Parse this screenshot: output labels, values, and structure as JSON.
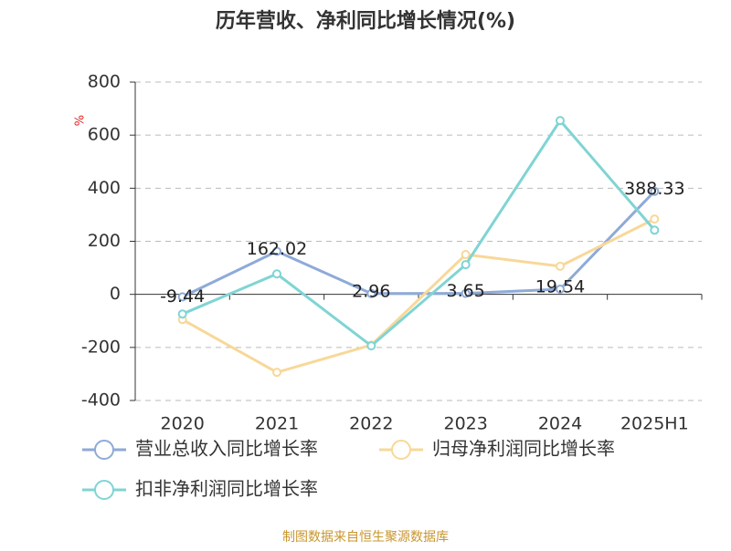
{
  "chart_data": {
    "type": "line",
    "title": "历年营收、净利同比增长情况(%)",
    "y_unit": "%",
    "categories": [
      "2020",
      "2021",
      "2022",
      "2023",
      "2024",
      "2025H1"
    ],
    "series": [
      {
        "name": "营业总收入同比增长率",
        "color": "#8eaad8",
        "values": [
          -9.44,
          162.02,
          2.96,
          3.65,
          19.54,
          388.33
        ],
        "show_labels": true
      },
      {
        "name": "归母净利润同比增长率",
        "color": "#f8d898",
        "values": [
          -95,
          -294,
          -191,
          150,
          106,
          284
        ],
        "show_labels": false
      },
      {
        "name": "扣非净利润同比增长率",
        "color": "#80d4d4",
        "values": [
          -74,
          77,
          -194,
          112,
          655,
          242
        ],
        "show_labels": false
      }
    ],
    "ylim": [
      -400,
      800
    ],
    "yticks": [
      -400,
      -200,
      0,
      200,
      400,
      600,
      800
    ],
    "grid": true,
    "source": "制图数据来自恒生聚源数据库"
  }
}
